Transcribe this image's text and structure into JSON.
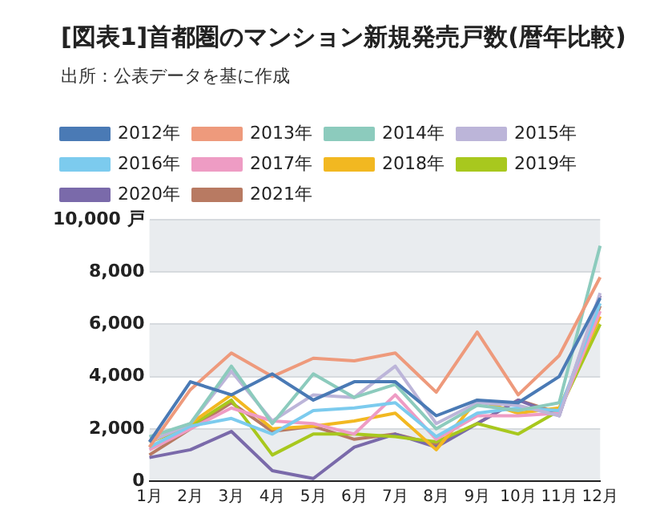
{
  "chart_data": {
    "type": "line",
    "title": "[図表1]首都圏のマンション新規発売戸数(暦年比較)",
    "annotations": [
      "出所：公表データを基に作成"
    ],
    "categories": [
      "1月",
      "2月",
      "3月",
      "4月",
      "5月",
      "6月",
      "7月",
      "8月",
      "9月",
      "10月",
      "11月",
      "12月"
    ],
    "series": [
      {
        "name": "2012年",
        "color": "#4a7ab5",
        "values": [
          1500,
          3800,
          3300,
          4100,
          3100,
          3800,
          3800,
          2500,
          3100,
          3000,
          4000,
          7000
        ]
      },
      {
        "name": "2013年",
        "color": "#ee9a7c",
        "values": [
          1300,
          3500,
          4900,
          4000,
          4700,
          4600,
          4900,
          3400,
          5700,
          3300,
          4800,
          7800
        ]
      },
      {
        "name": "2014年",
        "color": "#8ccbbd",
        "values": [
          1700,
          2200,
          4400,
          2200,
          4100,
          3200,
          3700,
          2000,
          2900,
          2700,
          3000,
          9000
        ]
      },
      {
        "name": "2015年",
        "color": "#bcb5d9",
        "values": [
          1500,
          2200,
          4200,
          2300,
          3300,
          3200,
          4400,
          2200,
          3000,
          2900,
          2500,
          7200
        ]
      },
      {
        "name": "2016年",
        "color": "#7ccbee",
        "values": [
          1300,
          2100,
          2400,
          1800,
          2700,
          2800,
          3000,
          1700,
          2600,
          2800,
          2700,
          6800
        ]
      },
      {
        "name": "2017年",
        "color": "#ee9cc4",
        "values": [
          1200,
          2000,
          2800,
          2300,
          2200,
          1800,
          3300,
          1600,
          2500,
          2500,
          2600,
          6500
        ]
      },
      {
        "name": "2018年",
        "color": "#f2b821",
        "values": [
          1500,
          2200,
          3300,
          2000,
          2100,
          2300,
          2600,
          1200,
          3100,
          2600,
          2800,
          6300
        ]
      },
      {
        "name": "2019年",
        "color": "#a8c81e",
        "values": [
          1500,
          2100,
          3100,
          1000,
          1800,
          1800,
          1700,
          1500,
          2200,
          1800,
          2700,
          6000
        ]
      },
      {
        "name": "2020年",
        "color": "#7a6aaa",
        "values": [
          900,
          1200,
          1900,
          400,
          100,
          1300,
          1800,
          1300,
          2200,
          3100,
          2500,
          7100
        ]
      },
      {
        "name": "2021年",
        "color": "#b87a62",
        "values": [
          1000,
          2000,
          3000,
          1900,
          2100,
          1600,
          1800,
          1400,
          2200,
          3100,
          2600,
          6700
        ]
      }
    ],
    "ylim": [
      0,
      10000
    ],
    "yticks": [
      0,
      {
        "value": 2000,
        "label": "2,000"
      },
      {
        "value": 4000,
        "label": "4,000"
      },
      {
        "value": 6000,
        "label": "6,000"
      },
      {
        "value": 8000,
        "label": "8,000"
      },
      {
        "value": 10000,
        "label": "10,000 戸"
      }
    ],
    "grid": "y",
    "legend": "top",
    "marker": "none",
    "line_style": "solid"
  }
}
